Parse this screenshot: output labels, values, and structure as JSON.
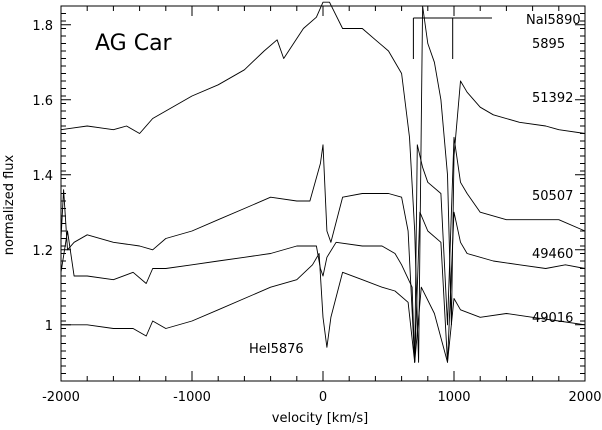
{
  "chart_data": {
    "type": "line",
    "title": "AG Car",
    "xlabel": "velocity [km/s]",
    "ylabel": "normalized flux",
    "xlim": [
      -2000,
      2000
    ],
    "ylim": [
      0.85,
      1.85
    ],
    "grid": false,
    "x_ticks": [
      "-2000",
      "-1000",
      "0",
      "1000",
      "2000"
    ],
    "y_ticks": [
      "1",
      "1.2",
      "1.4",
      "1.6",
      "1.8"
    ],
    "line_labels": {
      "nai_top": "NaI5890",
      "nai_bottom": "5895",
      "hei": "HeI5876"
    },
    "series": [
      {
        "name": "51392",
        "points": [
          [
            -2000,
            1.52
          ],
          [
            -1800,
            1.53
          ],
          [
            -1600,
            1.52
          ],
          [
            -1500,
            1.53
          ],
          [
            -1400,
            1.51
          ],
          [
            -1300,
            1.55
          ],
          [
            -1200,
            1.57
          ],
          [
            -1000,
            1.61
          ],
          [
            -800,
            1.64
          ],
          [
            -600,
            1.68
          ],
          [
            -450,
            1.73
          ],
          [
            -350,
            1.76
          ],
          [
            -300,
            1.71
          ],
          [
            -150,
            1.79
          ],
          [
            -50,
            1.82
          ],
          [
            0,
            1.86
          ],
          [
            50,
            1.86
          ],
          [
            150,
            1.79
          ],
          [
            300,
            1.79
          ],
          [
            400,
            1.76
          ],
          [
            500,
            1.73
          ],
          [
            600,
            1.67
          ],
          [
            660,
            1.5
          ],
          [
            700,
            1.25
          ],
          [
            730,
            0.9
          ],
          [
            760,
            1.85
          ],
          [
            800,
            1.75
          ],
          [
            850,
            1.7
          ],
          [
            900,
            1.6
          ],
          [
            950,
            1.4
          ],
          [
            980,
            1.0
          ],
          [
            1000,
            1.45
          ],
          [
            1050,
            1.65
          ],
          [
            1100,
            1.62
          ],
          [
            1200,
            1.58
          ],
          [
            1300,
            1.56
          ],
          [
            1500,
            1.54
          ],
          [
            1700,
            1.53
          ],
          [
            1800,
            1.52
          ],
          [
            2000,
            1.51
          ]
        ]
      },
      {
        "name": "50507",
        "points": [
          [
            -2000,
            1.23
          ],
          [
            -1980,
            1.36
          ],
          [
            -1950,
            1.2
          ],
          [
            -1900,
            1.22
          ],
          [
            -1800,
            1.24
          ],
          [
            -1600,
            1.22
          ],
          [
            -1400,
            1.21
          ],
          [
            -1300,
            1.2
          ],
          [
            -1200,
            1.23
          ],
          [
            -1000,
            1.25
          ],
          [
            -800,
            1.28
          ],
          [
            -600,
            1.31
          ],
          [
            -400,
            1.34
          ],
          [
            -200,
            1.33
          ],
          [
            -100,
            1.33
          ],
          [
            -20,
            1.43
          ],
          [
            0,
            1.48
          ],
          [
            30,
            1.25
          ],
          [
            60,
            1.22
          ],
          [
            150,
            1.34
          ],
          [
            300,
            1.35
          ],
          [
            500,
            1.35
          ],
          [
            600,
            1.34
          ],
          [
            650,
            1.25
          ],
          [
            700,
            0.9
          ],
          [
            720,
            1.48
          ],
          [
            760,
            1.42
          ],
          [
            800,
            1.38
          ],
          [
            900,
            1.35
          ],
          [
            950,
            1.0
          ],
          [
            1000,
            1.5
          ],
          [
            1050,
            1.38
          ],
          [
            1100,
            1.35
          ],
          [
            1200,
            1.3
          ],
          [
            1400,
            1.28
          ],
          [
            1600,
            1.28
          ],
          [
            1800,
            1.28
          ],
          [
            2000,
            1.25
          ]
        ]
      },
      {
        "name": "49460",
        "points": [
          [
            -2000,
            1.14
          ],
          [
            -1950,
            1.25
          ],
          [
            -1900,
            1.13
          ],
          [
            -1800,
            1.13
          ],
          [
            -1600,
            1.12
          ],
          [
            -1450,
            1.14
          ],
          [
            -1350,
            1.11
          ],
          [
            -1300,
            1.15
          ],
          [
            -1200,
            1.15
          ],
          [
            -1000,
            1.16
          ],
          [
            -800,
            1.17
          ],
          [
            -600,
            1.18
          ],
          [
            -400,
            1.19
          ],
          [
            -200,
            1.21
          ],
          [
            -50,
            1.21
          ],
          [
            -20,
            1.15
          ],
          [
            0,
            1.13
          ],
          [
            30,
            1.18
          ],
          [
            100,
            1.22
          ],
          [
            300,
            1.21
          ],
          [
            450,
            1.21
          ],
          [
            550,
            1.19
          ],
          [
            600,
            1.16
          ],
          [
            680,
            1.1
          ],
          [
            700,
            0.9
          ],
          [
            740,
            1.3
          ],
          [
            800,
            1.25
          ],
          [
            900,
            1.22
          ],
          [
            950,
            0.9
          ],
          [
            1000,
            1.3
          ],
          [
            1050,
            1.22
          ],
          [
            1100,
            1.19
          ],
          [
            1300,
            1.17
          ],
          [
            1500,
            1.16
          ],
          [
            1700,
            1.15
          ],
          [
            1850,
            1.16
          ],
          [
            2000,
            1.15
          ]
        ]
      },
      {
        "name": "49016",
        "points": [
          [
            -2000,
            1.0
          ],
          [
            -1800,
            1.0
          ],
          [
            -1600,
            0.99
          ],
          [
            -1450,
            0.99
          ],
          [
            -1350,
            0.97
          ],
          [
            -1300,
            1.01
          ],
          [
            -1200,
            0.99
          ],
          [
            -1000,
            1.01
          ],
          [
            -800,
            1.04
          ],
          [
            -600,
            1.07
          ],
          [
            -400,
            1.1
          ],
          [
            -200,
            1.12
          ],
          [
            -80,
            1.16
          ],
          [
            -30,
            1.19
          ],
          [
            0,
            1.02
          ],
          [
            30,
            0.94
          ],
          [
            60,
            1.02
          ],
          [
            150,
            1.14
          ],
          [
            300,
            1.12
          ],
          [
            450,
            1.1
          ],
          [
            550,
            1.09
          ],
          [
            650,
            1.06
          ],
          [
            700,
            0.9
          ],
          [
            750,
            1.1
          ],
          [
            850,
            1.03
          ],
          [
            950,
            0.9
          ],
          [
            1000,
            1.07
          ],
          [
            1050,
            1.04
          ],
          [
            1200,
            1.02
          ],
          [
            1400,
            1.03
          ],
          [
            1600,
            1.02
          ],
          [
            1800,
            1.01
          ],
          [
            2000,
            1.0
          ]
        ]
      }
    ]
  }
}
